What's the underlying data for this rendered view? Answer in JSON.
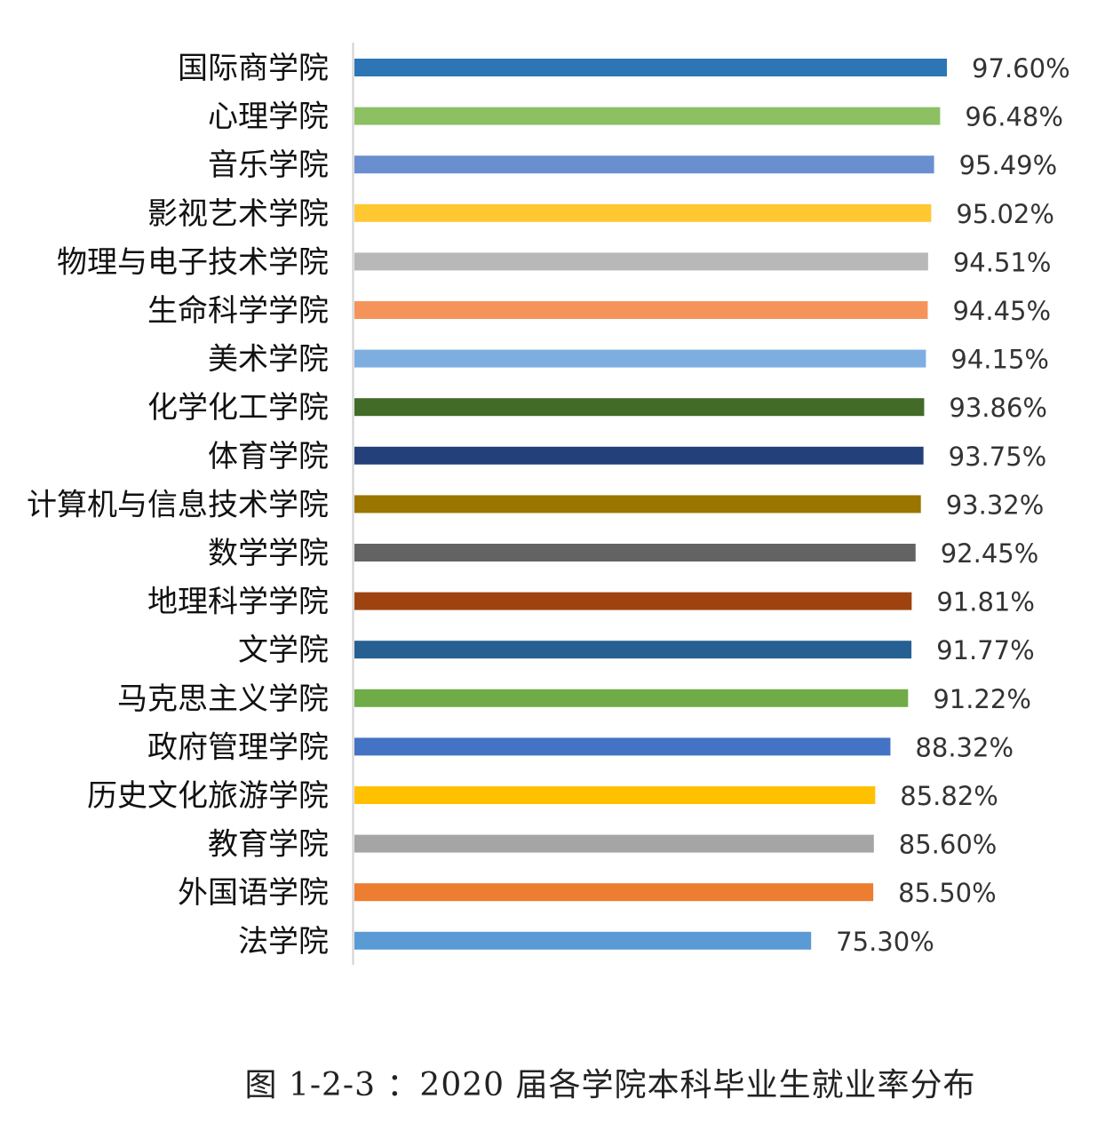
{
  "chart_data": {
    "type": "bar",
    "orientation": "horizontal",
    "categories": [
      "国际商学院",
      "心理学院",
      "音乐学院",
      "影视艺术学院",
      "物理与电子技术学院",
      "生命科学学院",
      "美术学院",
      "化学化工学院",
      "体育学院",
      "计算机与信息技术学院",
      "数学学院",
      "地理科学学院",
      "文学院",
      "马克思主义学院",
      "政府管理学院",
      "历史文化旅游学院",
      "教育学院",
      "外国语学院",
      "法学院"
    ],
    "values": [
      97.6,
      96.48,
      95.49,
      95.02,
      94.51,
      94.45,
      94.15,
      93.86,
      93.75,
      93.32,
      92.45,
      91.81,
      91.77,
      91.22,
      88.32,
      85.82,
      85.6,
      85.5,
      75.3
    ],
    "value_labels": [
      "97.60%",
      "96.48%",
      "95.49%",
      "95.02%",
      "94.51%",
      "94.45%",
      "94.15%",
      "93.86%",
      "93.75%",
      "93.32%",
      "92.45%",
      "91.81%",
      "91.77%",
      "91.22%",
      "88.32%",
      "85.82%",
      "85.60%",
      "85.50%",
      "75.30%"
    ],
    "colors": [
      "#2e75b6",
      "#8cc063",
      "#6a8fd0",
      "#ffc833",
      "#b8b8b8",
      "#f4945a",
      "#7eaee0",
      "#416b26",
      "#24407a",
      "#9a7500",
      "#636363",
      "#9e430f",
      "#265f91",
      "#6fab47",
      "#4472c4",
      "#ffc000",
      "#a5a5a5",
      "#ed7d31",
      "#5b9bd5"
    ],
    "xlim": [
      0,
      100
    ],
    "grid": false,
    "legend": "none",
    "unit": "%"
  },
  "caption": "图 1-2-3 ：2020 届各学院本科毕业生就业率分布"
}
